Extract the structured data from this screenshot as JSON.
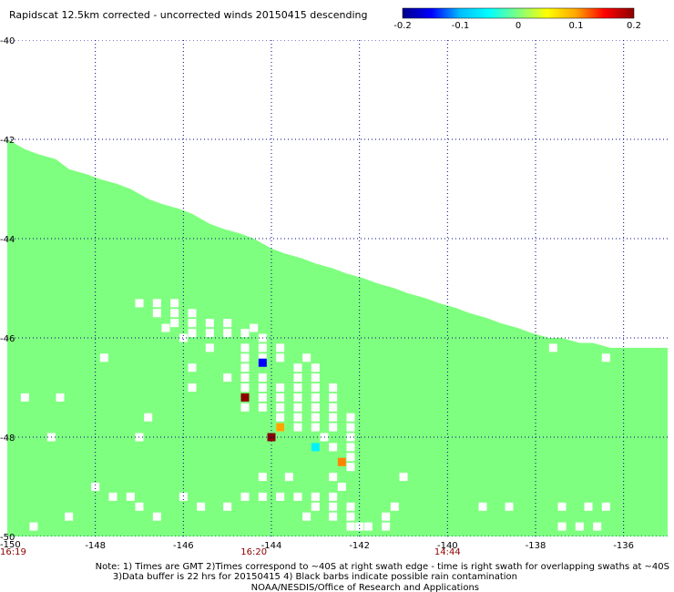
{
  "title": "Rapidscat 12.5km corrected - uncorrected winds 20150415 descending",
  "colorbar": {
    "tick_labels": [
      "-0.2",
      "-0.1",
      "0",
      "0.1",
      "0.2"
    ],
    "range": [
      -0.2,
      0.2
    ],
    "colors": [
      "#00008b",
      "#0000ff",
      "#00bfff",
      "#00ffff",
      "#7fff7f",
      "#ffff00",
      "#ffa500",
      "#ff0000",
      "#8b0000"
    ]
  },
  "chart_data": {
    "type": "heatmap",
    "xlim": [
      -150,
      -135
    ],
    "ylim": [
      -50,
      -40
    ],
    "x_ticks": [
      -148,
      -146,
      -144,
      -142,
      -140,
      -138,
      -136
    ],
    "x_tick_labels": [
      "-148",
      "-146",
      "-144",
      "-142",
      "-140",
      "-138",
      "-136"
    ],
    "x_origin_label": "-150",
    "y_ticks": [
      -40,
      -42,
      -44,
      -46,
      -48,
      -50
    ],
    "y_tick_labels": [
      "-40",
      "-42",
      "-44",
      "-46",
      "-48",
      "-50"
    ],
    "grid": true,
    "swath_background_color": "#7fff7f",
    "swath_value": 0,
    "swath_top_edge": [
      [
        -150,
        -42.0
      ],
      [
        -149.6,
        -42.2
      ],
      [
        -149.3,
        -42.3
      ],
      [
        -148.9,
        -42.4
      ],
      [
        -148.6,
        -42.6
      ],
      [
        -148.2,
        -42.7
      ],
      [
        -147.9,
        -42.8
      ],
      [
        -147.5,
        -42.9
      ],
      [
        -147.2,
        -43.0
      ],
      [
        -146.8,
        -43.2
      ],
      [
        -146.5,
        -43.3
      ],
      [
        -146.1,
        -43.4
      ],
      [
        -145.8,
        -43.5
      ],
      [
        -145.4,
        -43.7
      ],
      [
        -145.1,
        -43.8
      ],
      [
        -144.7,
        -43.9
      ],
      [
        -144.4,
        -44.0
      ],
      [
        -144.0,
        -44.2
      ],
      [
        -143.7,
        -44.3
      ],
      [
        -143.3,
        -44.4
      ],
      [
        -143.0,
        -44.5
      ],
      [
        -142.6,
        -44.6
      ],
      [
        -142.3,
        -44.7
      ],
      [
        -141.9,
        -44.8
      ],
      [
        -141.6,
        -44.9
      ],
      [
        -141.2,
        -45.0
      ],
      [
        -140.9,
        -45.1
      ],
      [
        -140.5,
        -45.2
      ],
      [
        -140.2,
        -45.3
      ],
      [
        -139.8,
        -45.4
      ],
      [
        -139.5,
        -45.5
      ],
      [
        -139.1,
        -45.6
      ],
      [
        -138.8,
        -45.7
      ],
      [
        -138.4,
        -45.8
      ],
      [
        -138.1,
        -45.9
      ],
      [
        -137.7,
        -46.0
      ],
      [
        -137.4,
        -46.0
      ],
      [
        -137.0,
        -46.1
      ],
      [
        -136.7,
        -46.1
      ],
      [
        -136.3,
        -46.2
      ],
      [
        -136.0,
        -46.2
      ],
      [
        -135.6,
        -46.2
      ],
      [
        -135.0,
        -46.2
      ]
    ],
    "no_data_cells": [
      [
        -147.0,
        -45.3
      ],
      [
        -146.6,
        -45.3
      ],
      [
        -146.2,
        -45.3
      ],
      [
        -146.6,
        -45.5
      ],
      [
        -146.2,
        -45.5
      ],
      [
        -145.8,
        -45.5
      ],
      [
        -146.2,
        -45.7
      ],
      [
        -145.8,
        -45.7
      ],
      [
        -145.4,
        -45.7
      ],
      [
        -145.0,
        -45.7
      ],
      [
        -145.8,
        -45.9
      ],
      [
        -145.4,
        -45.9
      ],
      [
        -145.0,
        -45.9
      ],
      [
        -144.6,
        -45.9
      ],
      [
        -144.2,
        -46.0
      ],
      [
        -144.6,
        -46.2
      ],
      [
        -144.2,
        -46.2
      ],
      [
        -143.8,
        -46.2
      ],
      [
        -144.6,
        -46.4
      ],
      [
        -144.2,
        -46.4
      ],
      [
        -143.8,
        -46.4
      ],
      [
        -143.4,
        -46.6
      ],
      [
        -143.0,
        -46.6
      ],
      [
        -145.0,
        -46.8
      ],
      [
        -144.6,
        -46.8
      ],
      [
        -144.2,
        -46.8
      ],
      [
        -143.4,
        -46.8
      ],
      [
        -143.0,
        -46.8
      ],
      [
        -144.6,
        -47.0
      ],
      [
        -144.2,
        -47.0
      ],
      [
        -143.8,
        -47.0
      ],
      [
        -143.4,
        -47.0
      ],
      [
        -143.0,
        -47.0
      ],
      [
        -142.6,
        -47.0
      ],
      [
        -144.6,
        -47.2
      ],
      [
        -144.2,
        -47.2
      ],
      [
        -143.8,
        -47.2
      ],
      [
        -143.4,
        -47.2
      ],
      [
        -143.0,
        -47.2
      ],
      [
        -142.6,
        -47.2
      ],
      [
        -144.2,
        -47.4
      ],
      [
        -143.8,
        -47.4
      ],
      [
        -143.4,
        -47.4
      ],
      [
        -143.0,
        -47.4
      ],
      [
        -142.6,
        -47.4
      ],
      [
        -143.8,
        -47.6
      ],
      [
        -143.4,
        -47.6
      ],
      [
        -143.0,
        -47.6
      ],
      [
        -142.6,
        -47.6
      ],
      [
        -142.2,
        -47.6
      ],
      [
        -143.4,
        -47.8
      ],
      [
        -143.0,
        -47.8
      ],
      [
        -142.6,
        -47.8
      ],
      [
        -142.2,
        -47.8
      ],
      [
        -142.2,
        -48.0
      ],
      [
        -142.6,
        -48.2
      ],
      [
        -142.2,
        -48.2
      ],
      [
        -142.2,
        -48.6
      ],
      [
        -142.6,
        -49.2
      ],
      [
        -142.6,
        -49.4
      ],
      [
        -142.2,
        -49.4
      ],
      [
        -142.6,
        -49.6
      ],
      [
        -142.2,
        -49.6
      ],
      [
        -142.2,
        -49.8
      ],
      [
        -141.8,
        -49.8
      ],
      [
        -147.8,
        -46.4
      ],
      [
        -145.8,
        -46.6
      ],
      [
        -144.6,
        -46.6
      ],
      [
        -145.8,
        -47.0
      ],
      [
        -144.6,
        -47.4
      ],
      [
        -143.8,
        -47.8
      ],
      [
        -142.8,
        -48.0
      ],
      [
        -142.2,
        -48.4
      ],
      [
        -142.4,
        -49.0
      ],
      [
        -142.0,
        -49.8
      ],
      [
        -149.6,
        -47.2
      ],
      [
        -148.8,
        -47.2
      ],
      [
        -146.8,
        -47.6
      ],
      [
        -149.0,
        -48.0
      ],
      [
        -147.0,
        -48.0
      ],
      [
        -141.0,
        -48.8
      ],
      [
        -141.2,
        -49.4
      ],
      [
        -141.4,
        -49.8
      ],
      [
        -137.6,
        -46.2
      ],
      [
        -136.4,
        -46.4
      ],
      [
        -148.0,
        -49.0
      ],
      [
        -147.6,
        -49.2
      ],
      [
        -146.0,
        -49.2
      ],
      [
        -147.2,
        -49.2
      ],
      [
        -145.6,
        -49.4
      ],
      [
        -144.6,
        -49.2
      ],
      [
        -144.2,
        -49.2
      ],
      [
        -143.8,
        -49.2
      ],
      [
        -143.4,
        -49.2
      ],
      [
        -143.0,
        -49.2
      ],
      [
        -143.6,
        -48.8
      ],
      [
        -144.2,
        -48.8
      ],
      [
        -142.6,
        -48.8
      ],
      [
        -145.0,
        -49.4
      ],
      [
        -147.0,
        -49.4
      ],
      [
        -143.0,
        -49.4
      ],
      [
        -148.6,
        -49.6
      ],
      [
        -146.6,
        -49.6
      ],
      [
        -139.2,
        -49.4
      ],
      [
        -138.6,
        -49.4
      ],
      [
        -137.4,
        -49.4
      ],
      [
        -136.8,
        -49.4
      ],
      [
        -136.4,
        -49.4
      ],
      [
        -137.4,
        -49.8
      ],
      [
        -137.0,
        -49.8
      ],
      [
        -136.6,
        -49.8
      ],
      [
        -149.4,
        -49.8
      ],
      [
        -141.4,
        -49.6
      ],
      [
        -143.2,
        -49.6
      ],
      [
        -145.4,
        -46.2
      ],
      [
        -146.0,
        -46.0
      ],
      [
        -146.4,
        -45.8
      ],
      [
        -143.2,
        -46.4
      ],
      [
        -144.4,
        -45.8
      ]
    ],
    "data_cells": [
      {
        "lon": -144.2,
        "lat": -46.5,
        "value": -0.15
      },
      {
        "lon": -144.6,
        "lat": -47.2,
        "value": 0.2
      },
      {
        "lon": -143.8,
        "lat": -47.8,
        "value": 0.1
      },
      {
        "lon": -144.0,
        "lat": -48.0,
        "value": 0.2
      },
      {
        "lon": -143.0,
        "lat": -48.2,
        "value": -0.06
      },
      {
        "lon": -142.4,
        "lat": -48.5,
        "value": 0.11
      }
    ],
    "time_labels": [
      {
        "lon": -150,
        "label": "16:19"
      },
      {
        "lon": -144.4,
        "label": "16:20"
      },
      {
        "lon": -140,
        "label": "14:44"
      }
    ]
  },
  "notes": [
    "Note: 1) Times are GMT 2)Times correspond to ~40S at right swath edge - time is right swath for overlapping swaths at ~40S",
    "3)Data buffer is 22 hrs for 20150415 4) Black barbs indicate possible rain contamination",
    "NOAA/NESDIS/Office of Research and Applications"
  ]
}
